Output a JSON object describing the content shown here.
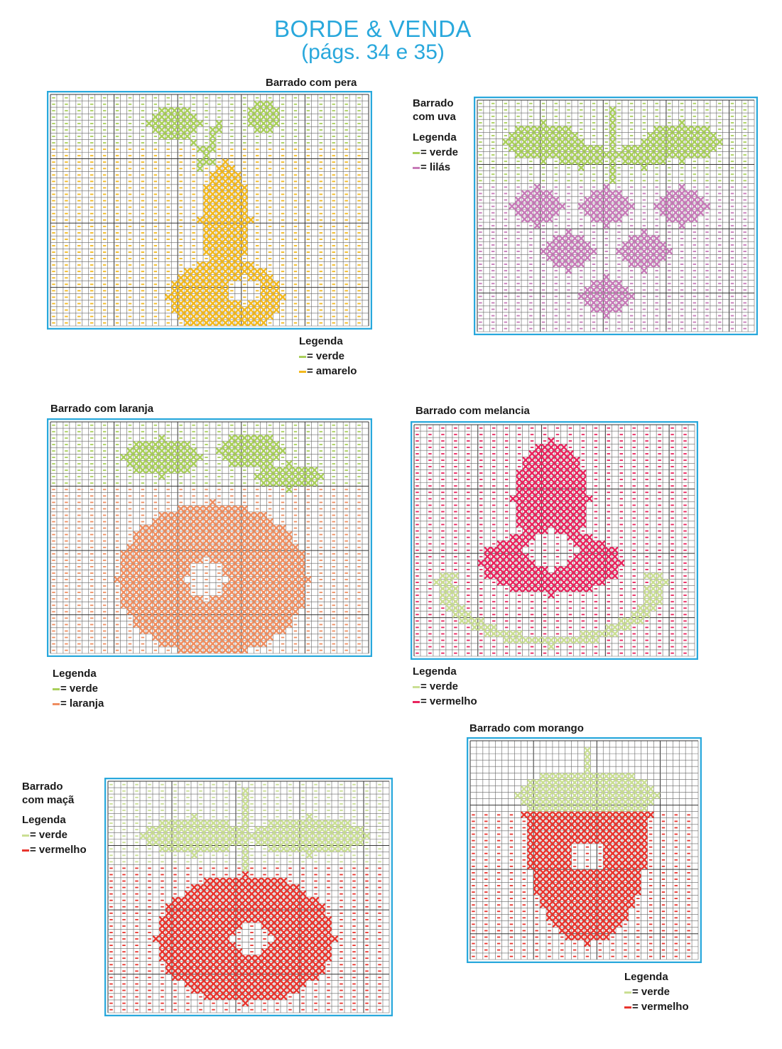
{
  "header": {
    "title": "BORDE & VENDA",
    "subtitle": "(págs. 34 e 35)"
  },
  "colors": {
    "verde": "#a9cf5a",
    "verde_claro": "#cadf93",
    "amarelo": "#f2b81e",
    "lilas": "#c77ab8",
    "laranja": "#ef8e60",
    "vermelho_melancia": "#e8245d",
    "vermelho": "#e8352e",
    "border": "#29a8dc"
  },
  "charts": [
    {
      "id": "pera",
      "title": "Barrado com pera",
      "legend_title": "Legenda",
      "legend": [
        {
          "color": "verde",
          "label": "= verde"
        },
        {
          "color": "amarelo",
          "label": "= amarelo"
        }
      ]
    },
    {
      "id": "uva",
      "title_lines": [
        "Barrado",
        "com uva"
      ],
      "legend_title": "Legenda",
      "legend": [
        {
          "color": "verde",
          "label": "= verde"
        },
        {
          "color": "lilas",
          "label": "= lilás"
        }
      ]
    },
    {
      "id": "laranja",
      "title": "Barrado com laranja",
      "legend_title": "Legenda",
      "legend": [
        {
          "color": "verde",
          "label": "= verde"
        },
        {
          "color": "laranja",
          "label": "= laranja"
        }
      ]
    },
    {
      "id": "melancia",
      "title": "Barrado com melancia",
      "legend_title": "Legenda",
      "legend": [
        {
          "color": "verde_claro",
          "label": "= verde"
        },
        {
          "color": "vermelho_melancia",
          "label": "= vermelho"
        }
      ]
    },
    {
      "id": "maca",
      "title_lines": [
        "Barrado",
        "com maçã"
      ],
      "legend_title": "Legenda",
      "legend": [
        {
          "color": "verde_claro",
          "label": "= verde"
        },
        {
          "color": "vermelho",
          "label": "= vermelho"
        }
      ]
    },
    {
      "id": "morango",
      "title": "Barrado com morango",
      "legend_title": "Legenda",
      "legend": [
        {
          "color": "verde_claro",
          "label": "= verde"
        },
        {
          "color": "vermelho",
          "label": "= vermelho"
        }
      ]
    }
  ]
}
